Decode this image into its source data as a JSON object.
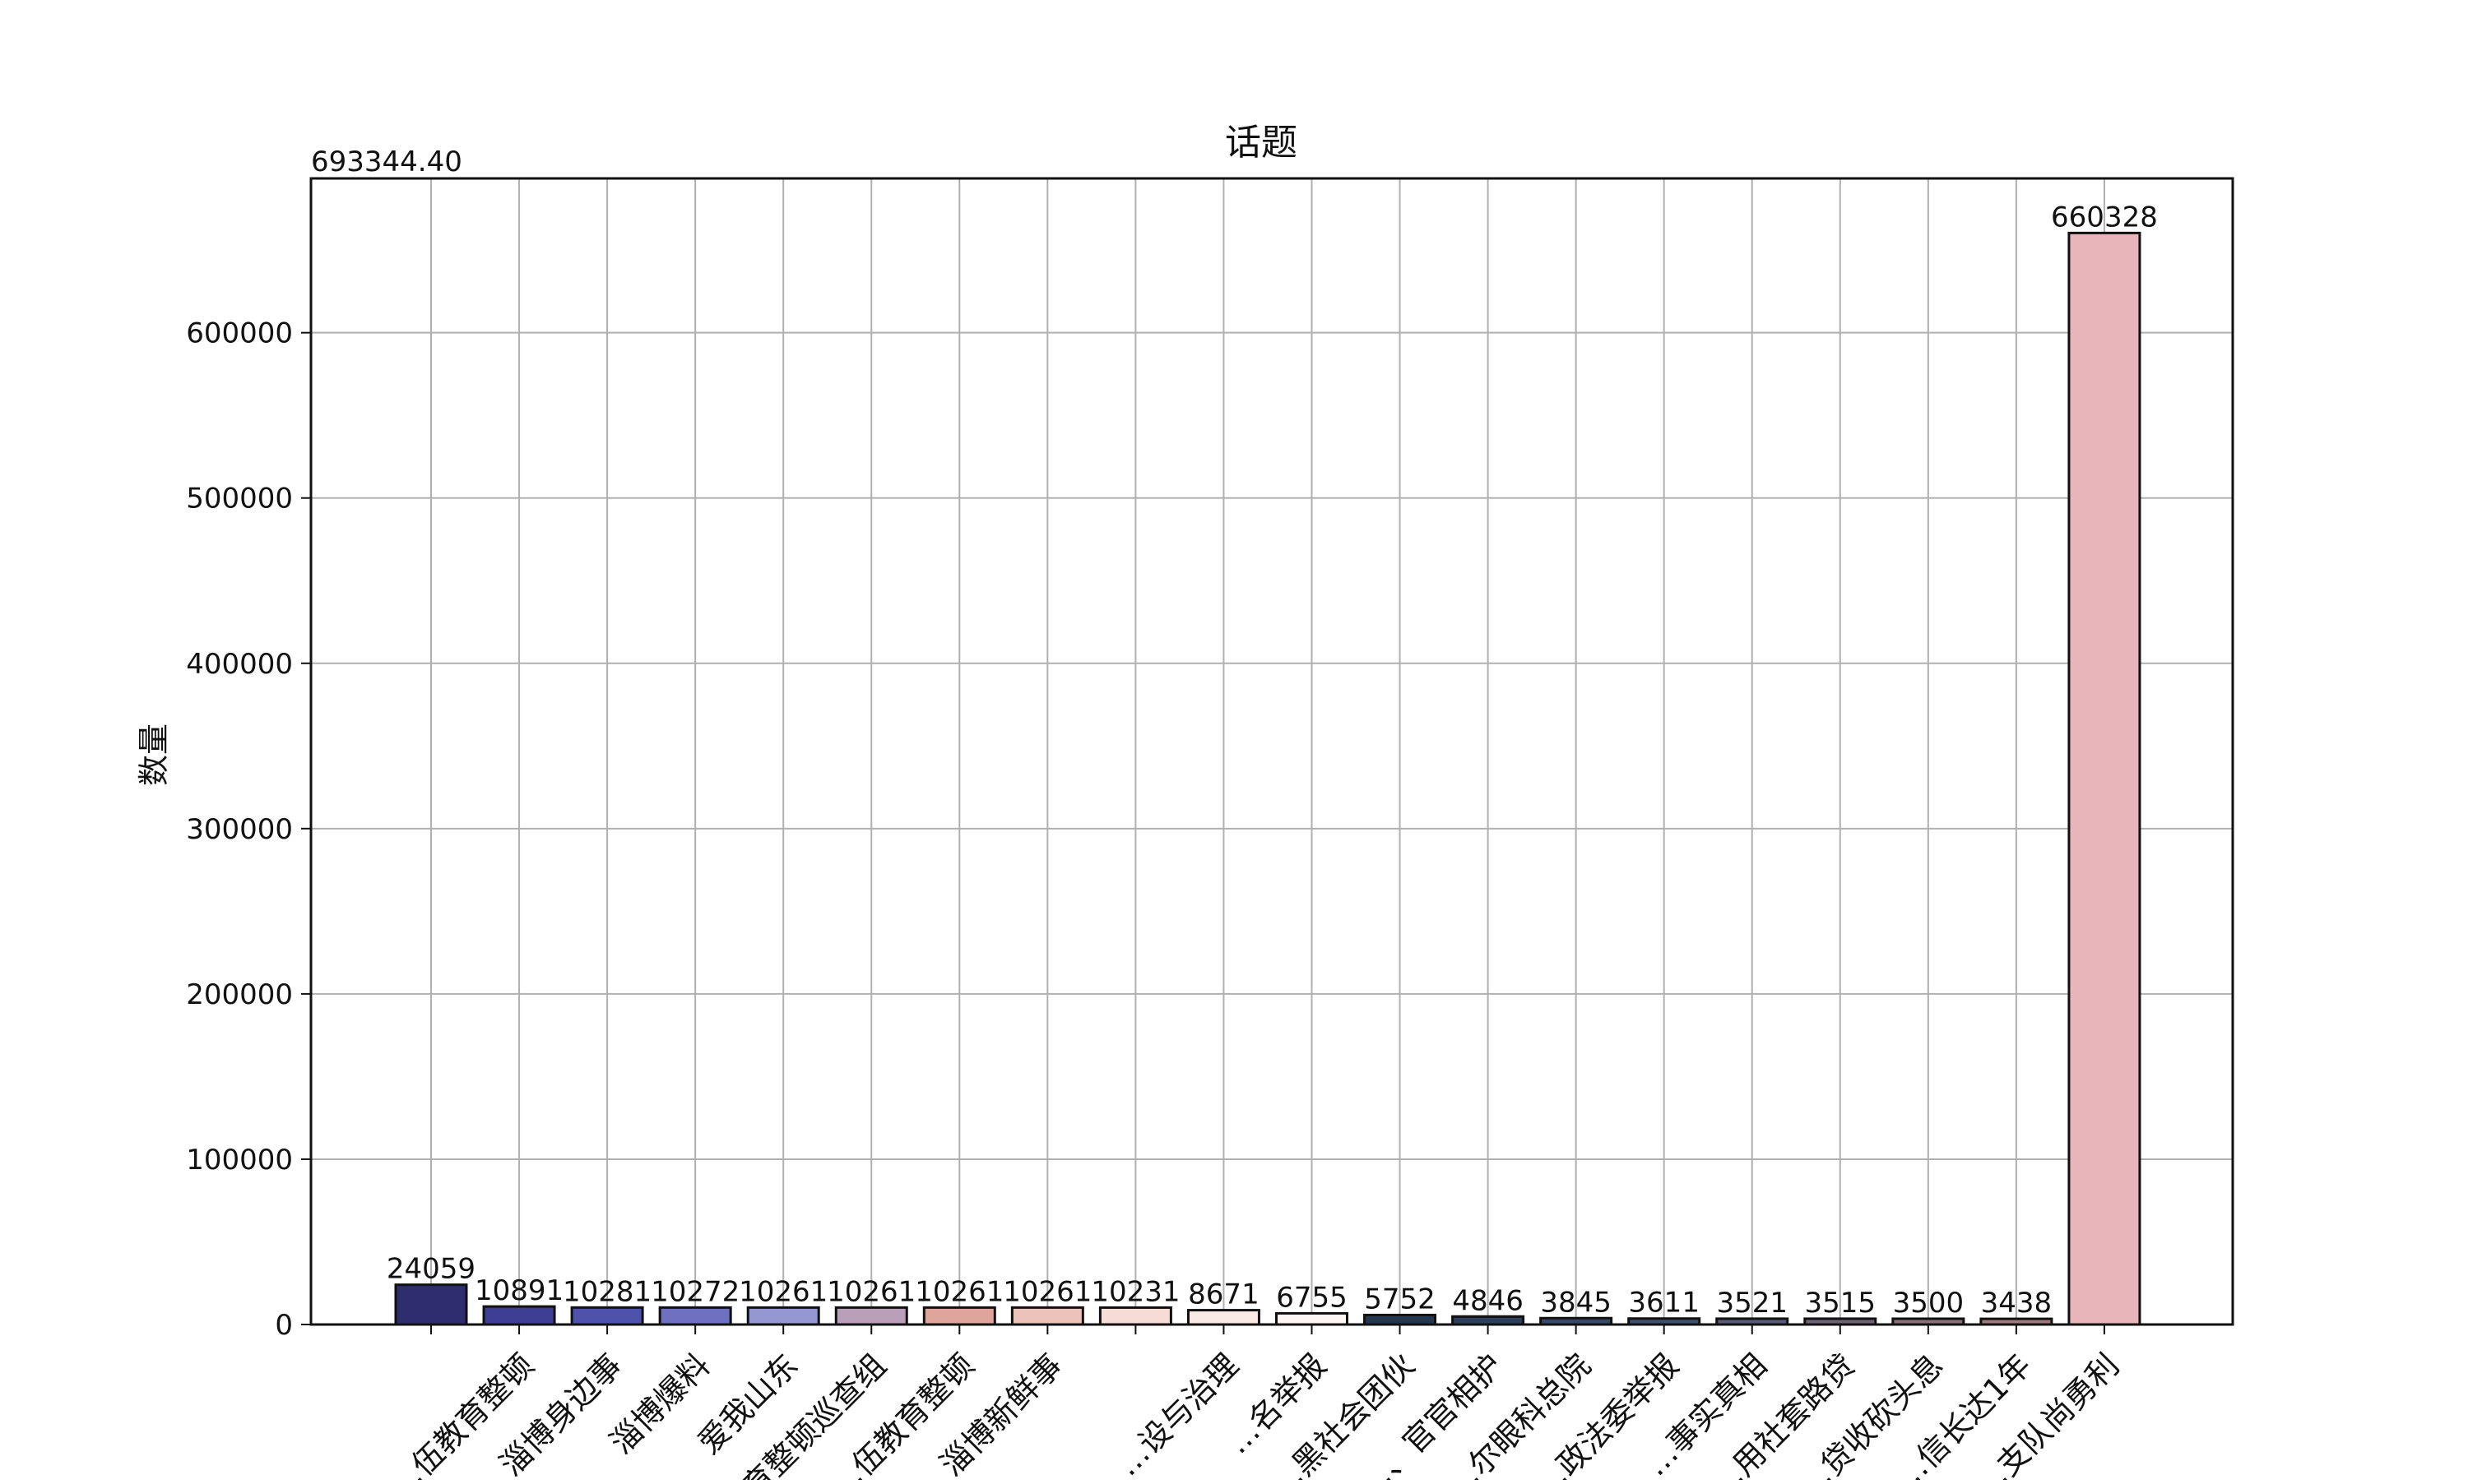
{
  "chart_data": {
    "type": "bar",
    "title": "话题",
    "xlabel": "",
    "ylabel": "数量",
    "ylim": [
      0,
      693344.4
    ],
    "ymax_label": "693344.40",
    "yticks": [
      0,
      100000,
      200000,
      300000,
      400000,
      500000,
      600000
    ],
    "grid": true,
    "legend": "none",
    "categories": [
      "",
      "…伍教育整顿",
      "淄博身边事",
      "淄博爆料",
      "爱我山东",
      "…育整顿巡查组",
      "…伍教育整顿",
      "淄博新鲜事",
      "",
      "…设与治理",
      "…名举报",
      "…黑社会团伙",
      "…、官官相护",
      "…尔眼科总院",
      "…政法委举报",
      "…事实真相",
      "…用社套路贷",
      "…贷收砍头息",
      "…信长达1年",
      "…支队尚勇利"
    ],
    "values": [
      24059,
      10891,
      10281,
      10272,
      10261,
      10261,
      10261,
      10261,
      10231,
      8671,
      6755,
      5752,
      4846,
      3845,
      3611,
      3521,
      3515,
      3500,
      3438,
      660328
    ],
    "colors": [
      "#2f2d6e",
      "#3d3e94",
      "#4f52ab",
      "#6e70c0",
      "#9597d2",
      "#b9a0b8",
      "#dfa49c",
      "#ecc3bb",
      "#f7dcd6",
      "#faeae6",
      "#fdf6f4",
      "#243650",
      "#2e3f5c",
      "#374868",
      "#404f70",
      "#5a5a78",
      "#6e6478",
      "#8a7078",
      "#a07880",
      "#e8b5ba"
    ]
  }
}
